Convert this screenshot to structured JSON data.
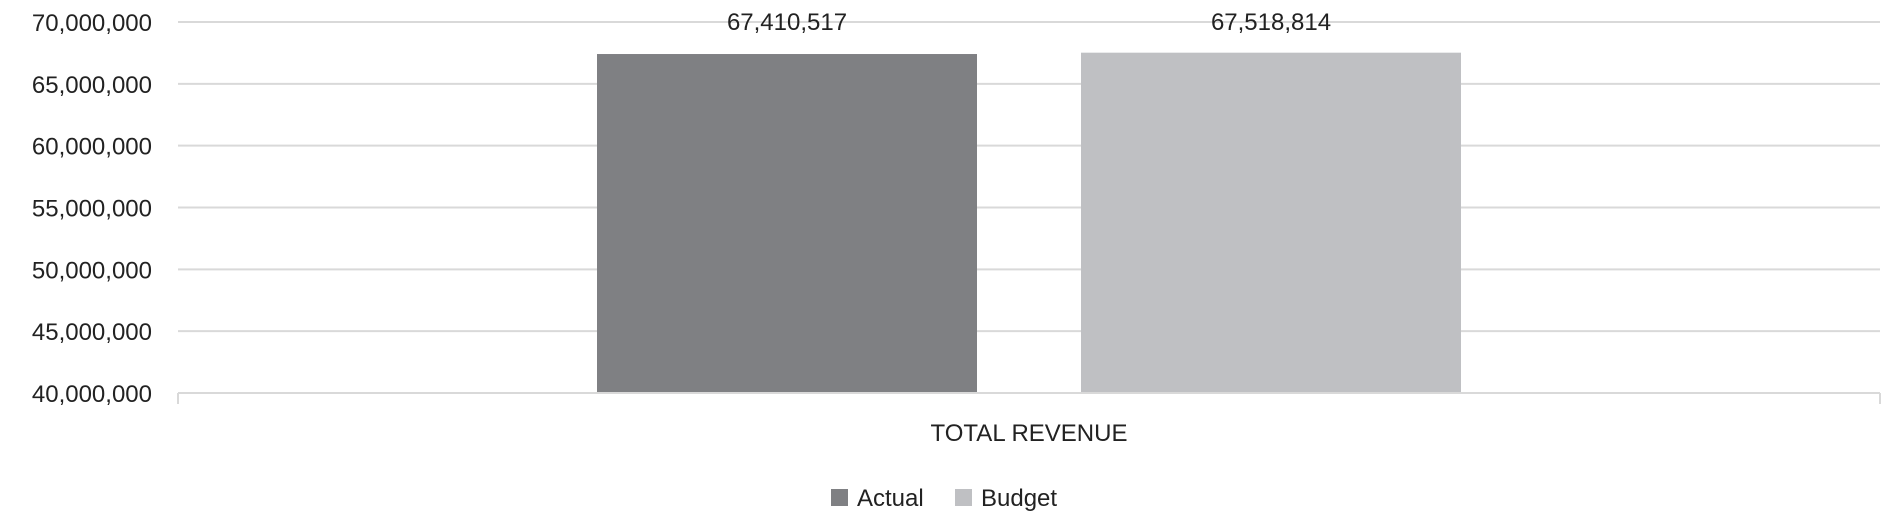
{
  "chart_data": {
    "type": "bar",
    "categories": [
      "TOTAL REVENUE"
    ],
    "series": [
      {
        "name": "Actual",
        "values": [
          67410517
        ],
        "color": "#7f8083"
      },
      {
        "name": "Budget",
        "values": [
          67518814
        ],
        "color": "#bfc0c3"
      }
    ],
    "data_labels": [
      "67,410,517",
      "67,518,814"
    ],
    "ylim": [
      40000000,
      70000000
    ],
    "yticks": [
      40000000,
      45000000,
      50000000,
      55000000,
      60000000,
      65000000,
      70000000
    ],
    "ytick_labels": [
      "40,000,000",
      "45,000,000",
      "50,000,000",
      "55,000,000",
      "60,000,000",
      "65,000,000",
      "70,000,000"
    ],
    "grid": true,
    "legend_position": "bottom"
  }
}
